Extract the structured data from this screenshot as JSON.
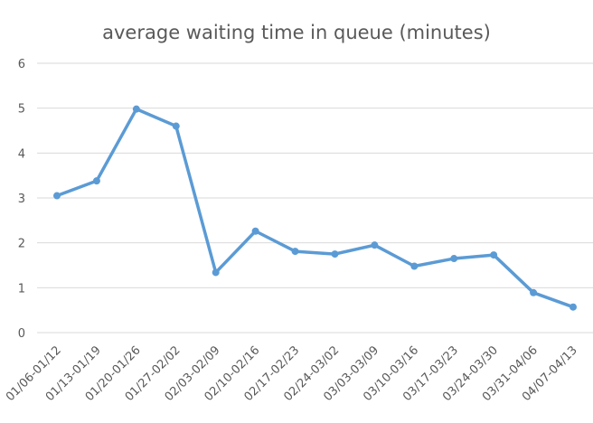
{
  "chart_data": {
    "type": "line",
    "title": "average waiting time in queue (minutes)",
    "xlabel": "",
    "ylabel": "",
    "ylim": [
      0,
      6
    ],
    "yticks": [
      0,
      1,
      2,
      3,
      4,
      5,
      6
    ],
    "grid": true,
    "legend": "none",
    "categories": [
      "01/06-01/12",
      "01/13-01/19",
      "01/20-01/26",
      "01/27-02/02",
      "02/03-02/09",
      "02/10-02/16",
      "02/17-02/23",
      "02/24-03/02",
      "03/03-03/09",
      "03/10-03/16",
      "03/17-03/23",
      "03/24-03/30",
      "03/31-04/06",
      "04/07-04/13"
    ],
    "series": [
      {
        "color": "#5b9bd5",
        "values": [
          3.05,
          3.38,
          4.98,
          4.6,
          1.34,
          2.26,
          1.81,
          1.75,
          1.95,
          1.48,
          1.65,
          1.73,
          0.89,
          0.57
        ]
      }
    ]
  }
}
